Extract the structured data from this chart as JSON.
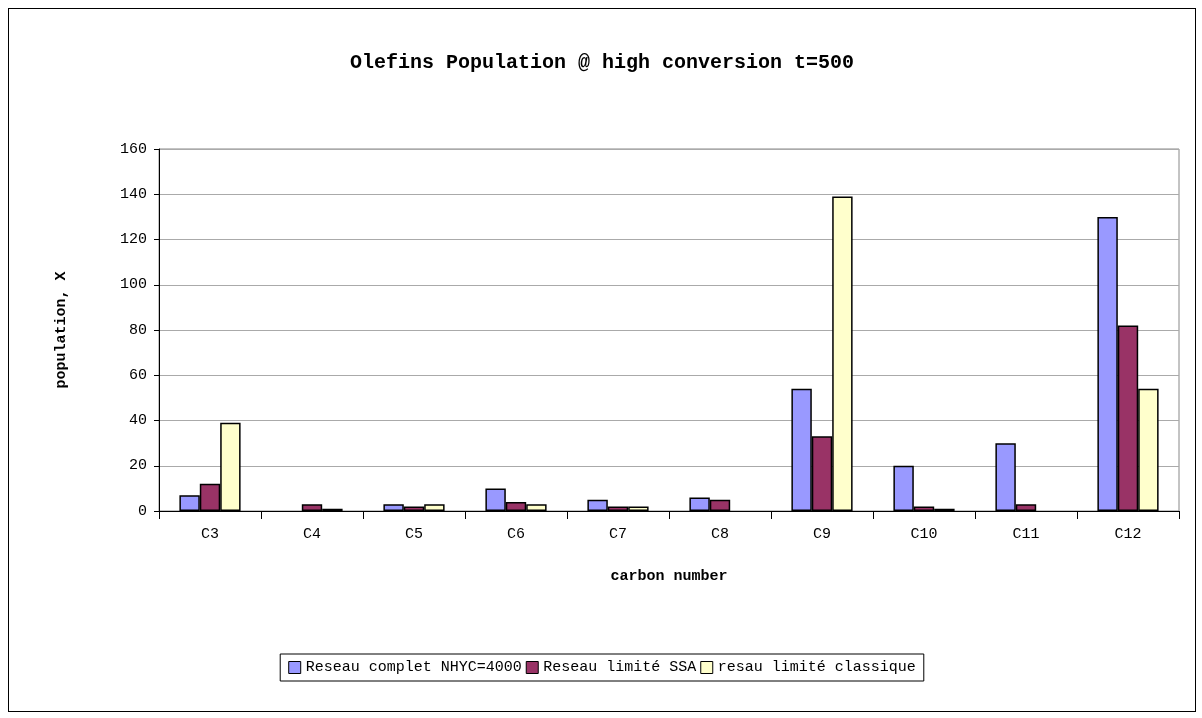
{
  "chart_data": {
    "type": "bar",
    "title": "Olefins Population @ high conversion t=500",
    "xlabel": "carbon number",
    "ylabel": "population, X",
    "categories": [
      "C3",
      "C4",
      "C5",
      "C6",
      "C7",
      "C8",
      "C9",
      "C10",
      "C11",
      "C12"
    ],
    "series": [
      {
        "name": "Reseau complet NHYC=4000",
        "color": "#9999ff",
        "values": [
          7,
          0,
          3,
          10,
          5,
          6,
          54,
          20,
          30,
          130
        ]
      },
      {
        "name": "Reseau limité SSA",
        "color": "#993366",
        "values": [
          12,
          3,
          2,
          4,
          2,
          5,
          33,
          2,
          3,
          82
        ]
      },
      {
        "name": "resau limité classique",
        "color": "#ffffcc",
        "values": [
          39,
          1,
          3,
          3,
          2,
          0,
          139,
          1,
          0,
          54
        ]
      }
    ],
    "ylim": [
      0,
      160
    ],
    "yticks": [
      0,
      20,
      40,
      60,
      80,
      100,
      120,
      140,
      160
    ],
    "grid": "y",
    "legend": "bottom"
  }
}
